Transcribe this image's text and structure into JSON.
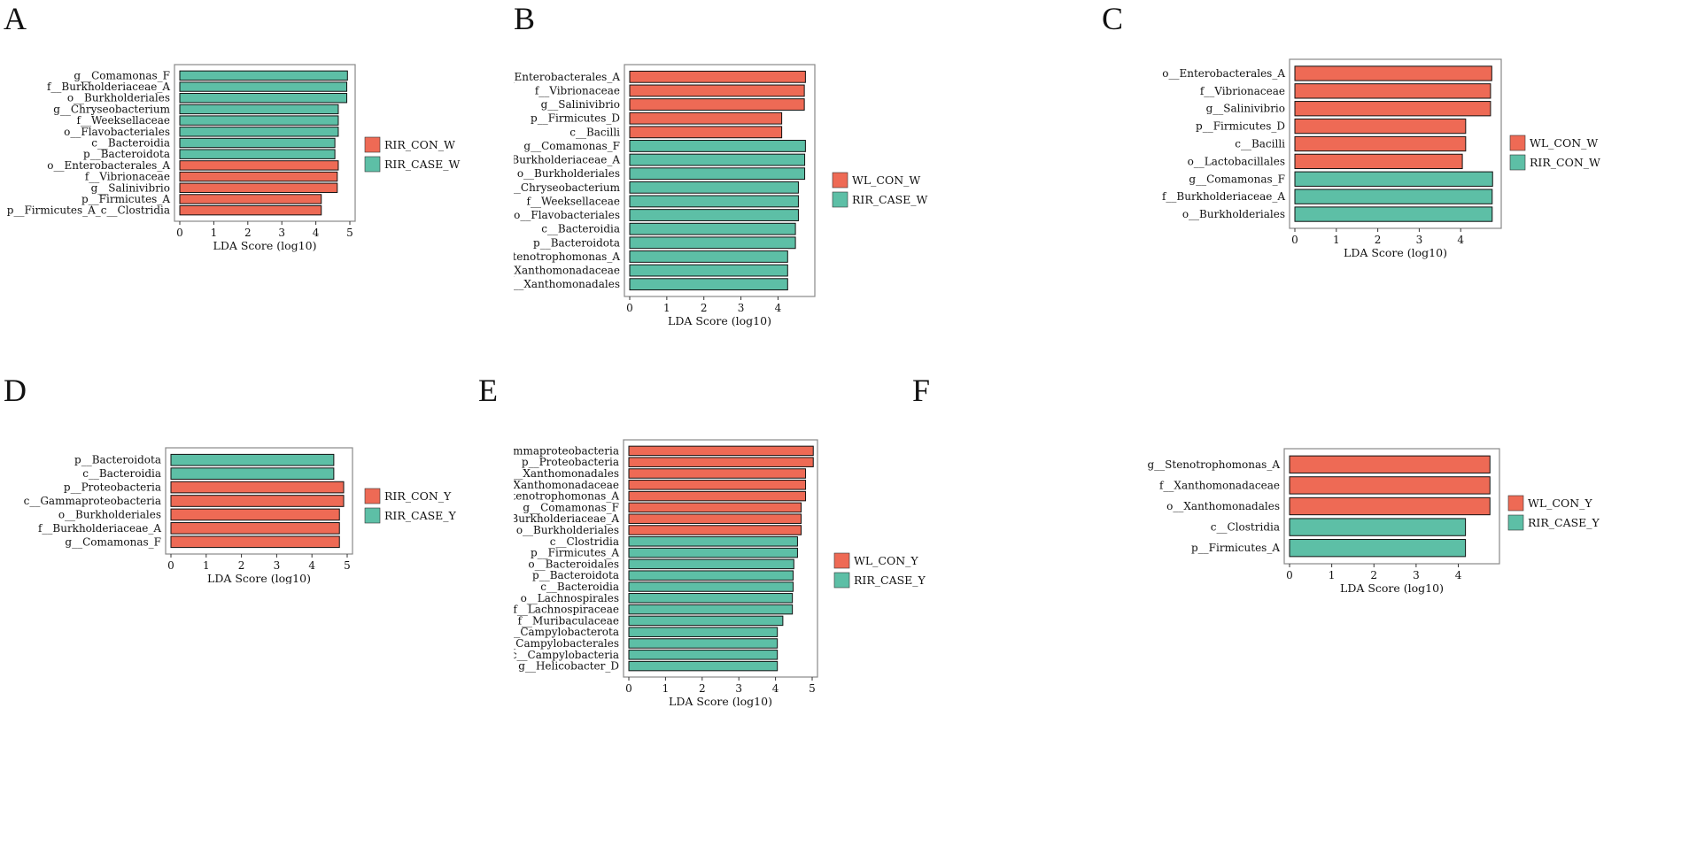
{
  "figure": {
    "colors": {
      "con": "#EE6A55",
      "case": "#5DBFA6",
      "frame": "#888888"
    }
  },
  "chart_data": [
    {
      "panel": "A",
      "type": "bar",
      "orientation": "horizontal",
      "xlabel": "LDA Score (log10)",
      "xlim": [
        0,
        5
      ],
      "xticks": [
        0,
        1,
        2,
        3,
        4,
        5
      ],
      "legend": [
        {
          "label": "RIR_CON_W",
          "color": "#EE6A55"
        },
        {
          "label": "RIR_CASE_W",
          "color": "#5DBFA6"
        }
      ],
      "bars": [
        {
          "label": "g__Comamonas_F",
          "value": 4.93,
          "group": 1
        },
        {
          "label": "f__Burkholderiaceae_A",
          "value": 4.91,
          "group": 1
        },
        {
          "label": "o__Burkholderiales",
          "value": 4.91,
          "group": 1
        },
        {
          "label": "g__Chryseobacterium",
          "value": 4.66,
          "group": 1
        },
        {
          "label": "f__Weeksellaceae",
          "value": 4.66,
          "group": 1
        },
        {
          "label": "o__Flavobacteriales",
          "value": 4.66,
          "group": 1
        },
        {
          "label": "c__Bacteroidia",
          "value": 4.56,
          "group": 1
        },
        {
          "label": "p__Bacteroidota",
          "value": 4.56,
          "group": 1
        },
        {
          "label": "o__Enterobacterales_A",
          "value": 4.66,
          "group": 0
        },
        {
          "label": "f__Vibrionaceae",
          "value": 4.63,
          "group": 0
        },
        {
          "label": "g__Salinivibrio",
          "value": 4.63,
          "group": 0
        },
        {
          "label": "p__Firmicutes_A",
          "value": 4.16,
          "group": 0
        },
        {
          "label": "p__Firmicutes_A_c__Clostridia",
          "value": 4.16,
          "group": 0
        }
      ]
    },
    {
      "panel": "B",
      "type": "bar",
      "orientation": "horizontal",
      "xlabel": "LDA Score (log10)",
      "xlim": [
        0,
        4.85
      ],
      "xticks": [
        0,
        1,
        2,
        3,
        4
      ],
      "legend": [
        {
          "label": "WL_CON_W",
          "color": "#EE6A55"
        },
        {
          "label": "RIR_CASE_W",
          "color": "#5DBFA6"
        }
      ],
      "bars": [
        {
          "label": "o__Enterobacterales_A",
          "value": 4.74,
          "group": 0
        },
        {
          "label": "f__Vibrionaceae",
          "value": 4.71,
          "group": 0
        },
        {
          "label": "g__Salinivibrio",
          "value": 4.71,
          "group": 0
        },
        {
          "label": "p__Firmicutes_D",
          "value": 4.1,
          "group": 0
        },
        {
          "label": "c__Bacilli",
          "value": 4.1,
          "group": 0
        },
        {
          "label": "g__Comamonas_F",
          "value": 4.74,
          "group": 1
        },
        {
          "label": "f__Burkholderiaceae_A",
          "value": 4.72,
          "group": 1
        },
        {
          "label": "o__Burkholderiales",
          "value": 4.72,
          "group": 1
        },
        {
          "label": "g__Chryseobacterium",
          "value": 4.55,
          "group": 1
        },
        {
          "label": "f__Weeksellaceae",
          "value": 4.55,
          "group": 1
        },
        {
          "label": "o__Flavobacteriales",
          "value": 4.55,
          "group": 1
        },
        {
          "label": "c__Bacteroidia",
          "value": 4.47,
          "group": 1
        },
        {
          "label": "p__Bacteroidota",
          "value": 4.47,
          "group": 1
        },
        {
          "label": "g__Stenotrophomonas_A",
          "value": 4.26,
          "group": 1
        },
        {
          "label": "f__Xanthomonadaceae",
          "value": 4.26,
          "group": 1
        },
        {
          "label": "o__Xanthomonadales",
          "value": 4.26,
          "group": 1
        }
      ]
    },
    {
      "panel": "C",
      "type": "bar",
      "orientation": "horizontal",
      "xlabel": "LDA Score (log10)",
      "xlim": [
        0,
        4.85
      ],
      "xticks": [
        0,
        1,
        2,
        3,
        4
      ],
      "legend": [
        {
          "label": "WL_CON_W",
          "color": "#EE6A55"
        },
        {
          "label": "RIR_CON_W",
          "color": "#5DBFA6"
        }
      ],
      "bars": [
        {
          "label": "o__Enterobacterales_A",
          "value": 4.75,
          "group": 0
        },
        {
          "label": "f__Vibrionaceae",
          "value": 4.72,
          "group": 0
        },
        {
          "label": "g__Salinivibrio",
          "value": 4.72,
          "group": 0
        },
        {
          "label": "p__Firmicutes_D",
          "value": 4.12,
          "group": 0
        },
        {
          "label": "c__Bacilli",
          "value": 4.12,
          "group": 0
        },
        {
          "label": "o__Lactobacillales",
          "value": 4.04,
          "group": 0
        },
        {
          "label": "g__Comamonas_F",
          "value": 4.77,
          "group": 1
        },
        {
          "label": "f__Burkholderiaceae_A",
          "value": 4.76,
          "group": 1
        },
        {
          "label": "o__Burkholderiales",
          "value": 4.76,
          "group": 1
        }
      ]
    },
    {
      "panel": "D",
      "type": "bar",
      "orientation": "horizontal",
      "xlabel": "LDA Score (log10)",
      "xlim": [
        0,
        5
      ],
      "xticks": [
        0,
        1,
        2,
        3,
        4,
        5
      ],
      "legend": [
        {
          "label": "RIR_CON_Y",
          "color": "#EE6A55"
        },
        {
          "label": "RIR_CASE_Y",
          "color": "#5DBFA6"
        }
      ],
      "bars": [
        {
          "label": "p__Bacteroidota",
          "value": 4.62,
          "group": 1
        },
        {
          "label": "c__Bacteroidia",
          "value": 4.62,
          "group": 1
        },
        {
          "label": "p__Proteobacteria",
          "value": 4.9,
          "group": 0
        },
        {
          "label": "c__Gammaproteobacteria",
          "value": 4.9,
          "group": 0
        },
        {
          "label": "o__Burkholderiales",
          "value": 4.78,
          "group": 0
        },
        {
          "label": "f__Burkholderiaceae_A",
          "value": 4.78,
          "group": 0
        },
        {
          "label": "g__Comamonas_F",
          "value": 4.78,
          "group": 0
        }
      ]
    },
    {
      "panel": "E",
      "type": "bar",
      "orientation": "horizontal",
      "xlabel": "LDA Score (log10)",
      "xlim": [
        0,
        5
      ],
      "xticks": [
        0,
        1,
        2,
        3,
        4,
        5
      ],
      "legend": [
        {
          "label": "WL_CON_Y",
          "color": "#EE6A55"
        },
        {
          "label": "RIR_CASE_Y",
          "color": "#5DBFA6"
        }
      ],
      "bars": [
        {
          "label": "c__Gammaproteobacteria",
          "value": 5.03,
          "group": 0
        },
        {
          "label": "p__Proteobacteria",
          "value": 5.03,
          "group": 0
        },
        {
          "label": "o__Xanthomonadales",
          "value": 4.82,
          "group": 0
        },
        {
          "label": "f__Xanthomonadaceae",
          "value": 4.82,
          "group": 0
        },
        {
          "label": "g__Stenotrophomonas_A",
          "value": 4.82,
          "group": 0
        },
        {
          "label": "g__Comamonas_F",
          "value": 4.7,
          "group": 0
        },
        {
          "label": "f__Burkholderiaceae_A",
          "value": 4.7,
          "group": 0
        },
        {
          "label": "o__Burkholderiales",
          "value": 4.7,
          "group": 0
        },
        {
          "label": "c__Clostridia",
          "value": 4.6,
          "group": 1
        },
        {
          "label": "p__Firmicutes_A",
          "value": 4.6,
          "group": 1
        },
        {
          "label": "o__Bacteroidales",
          "value": 4.5,
          "group": 1
        },
        {
          "label": "p__Bacteroidota",
          "value": 4.48,
          "group": 1
        },
        {
          "label": "c__Bacteroidia",
          "value": 4.48,
          "group": 1
        },
        {
          "label": "o__Lachnospirales",
          "value": 4.46,
          "group": 1
        },
        {
          "label": "f__Lachnospiraceae",
          "value": 4.46,
          "group": 1
        },
        {
          "label": "f__Muribaculaceae",
          "value": 4.2,
          "group": 1
        },
        {
          "label": "p__Campylobacterota",
          "value": 4.05,
          "group": 1
        },
        {
          "label": "o__Campylobacterales",
          "value": 4.05,
          "group": 1
        },
        {
          "label": "c__Campylobacteria",
          "value": 4.05,
          "group": 1
        },
        {
          "label": "g__Helicobacter_D",
          "value": 4.05,
          "group": 1
        }
      ]
    },
    {
      "panel": "F",
      "type": "bar",
      "orientation": "horizontal",
      "xlabel": "LDA Score (log10)",
      "xlim": [
        0,
        4.85
      ],
      "xticks": [
        0,
        1,
        2,
        3,
        4
      ],
      "legend": [
        {
          "label": "WL_CON_Y",
          "color": "#EE6A55"
        },
        {
          "label": "RIR_CASE_Y",
          "color": "#5DBFA6"
        }
      ],
      "bars": [
        {
          "label": "g__Stenotrophomonas_A",
          "value": 4.75,
          "group": 0
        },
        {
          "label": "f__Xanthomonadaceae",
          "value": 4.75,
          "group": 0
        },
        {
          "label": "o__Xanthomonadales",
          "value": 4.75,
          "group": 0
        },
        {
          "label": "c__Clostridia",
          "value": 4.17,
          "group": 1
        },
        {
          "label": "p__Firmicutes_A",
          "value": 4.17,
          "group": 1
        }
      ]
    }
  ]
}
